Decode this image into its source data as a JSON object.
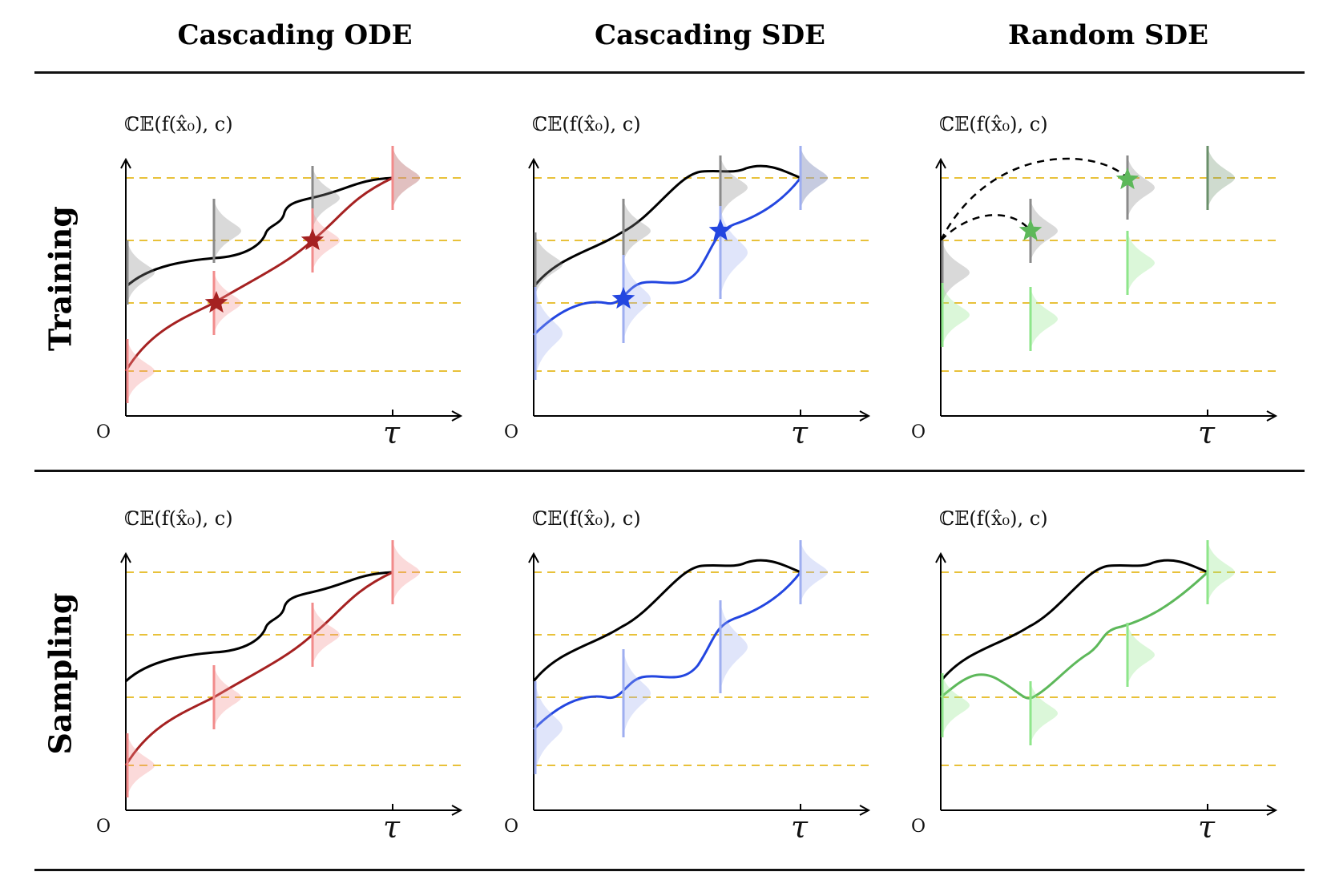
{
  "columns": [
    {
      "id": "cascading-ode",
      "title": "Cascading ODE",
      "color": "#a52121",
      "light": "#f28b8b"
    },
    {
      "id": "cascading-sde",
      "title": "Cascading SDE",
      "color": "#2346e0",
      "light": "#9eaef0"
    },
    {
      "id": "random-sde",
      "title": "Random SDE",
      "color": "#5db85a",
      "light": "#8ee68a"
    }
  ],
  "rows": [
    {
      "id": "training",
      "title": "Training"
    },
    {
      "id": "sampling",
      "title": "Sampling"
    }
  ],
  "axis": {
    "y_label": "ℂ𝔼(f(x̂₀), c)",
    "origin_label": "O",
    "end_label": "τ"
  },
  "colors": {
    "reference_line": "#e8c13a",
    "black_curve": "#000000",
    "gray_dist": "#8a8a8a"
  }
}
